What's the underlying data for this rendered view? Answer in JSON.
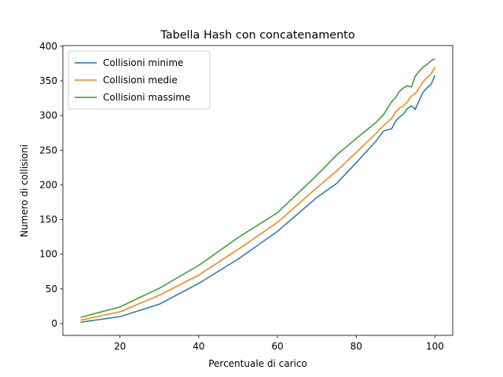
{
  "chart_data": {
    "type": "line",
    "title": "Tabella Hash con concatenamento",
    "x_label": "Percentuale di carico",
    "y_label": "Numero di collisioni",
    "x": [
      10,
      20,
      30,
      40,
      50,
      60,
      70,
      75,
      80,
      85,
      87,
      89,
      90,
      91,
      92,
      93,
      94,
      95,
      96,
      97,
      98,
      99,
      100
    ],
    "series": [
      {
        "name": "Collisioni minime",
        "color": "#1f77b4",
        "values": [
          2,
          10,
          28,
          58,
          93,
          133,
          182,
          202,
          232,
          263,
          278,
          281,
          292,
          298,
          302,
          310,
          314,
          309,
          322,
          334,
          340,
          345,
          358
        ]
      },
      {
        "name": "Collisioni medie",
        "color": "#ff7f0e",
        "values": [
          5,
          17,
          41,
          70,
          107,
          146,
          196,
          220,
          247,
          274,
          286,
          296,
          305,
          311,
          314,
          320,
          328,
          332,
          340,
          349,
          355,
          360,
          370
        ]
      },
      {
        "name": "Collisioni massime",
        "color": "#2ca02c",
        "values": [
          9,
          24,
          51,
          84,
          124,
          160,
          214,
          243,
          267,
          290,
          302,
          320,
          326,
          335,
          340,
          343,
          341,
          357,
          364,
          370,
          374,
          379,
          382
        ]
      }
    ],
    "xlim": [
      5.5,
      104.5
    ],
    "ylim": [
      -17,
      401
    ],
    "xticks": [
      20,
      40,
      60,
      80,
      100
    ],
    "yticks": [
      0,
      50,
      100,
      150,
      200,
      250,
      300,
      350,
      400
    ],
    "legend": "upper left",
    "grid": false
  }
}
